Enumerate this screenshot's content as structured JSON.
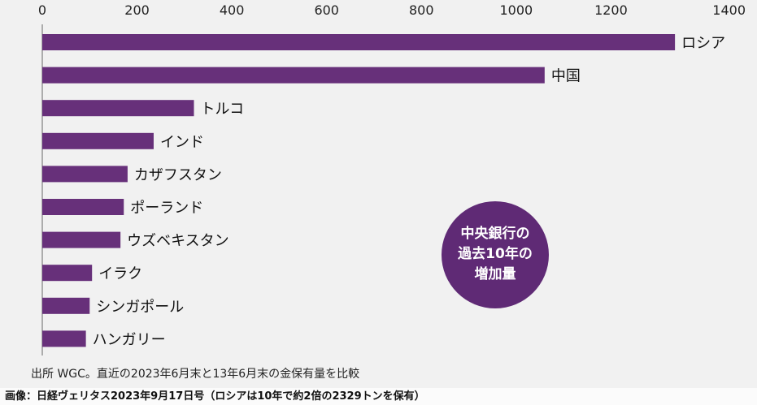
{
  "chart_data": {
    "type": "bar",
    "orientation": "horizontal",
    "categories": [
      "ロシア",
      "中国",
      "トルコ",
      "インド",
      "カザフスタン",
      "ポーランド",
      "ウズベキスタン",
      "イラク",
      "シンガポール",
      "ハンガリー"
    ],
    "values": [
      1335,
      1060,
      320,
      235,
      180,
      172,
      165,
      105,
      100,
      92
    ],
    "ticks": [
      0,
      200,
      400,
      600,
      800,
      1000,
      1200,
      1400
    ],
    "xlim": [
      0,
      1400
    ],
    "bar_color": "#67307a",
    "axis_position": "top",
    "badge": {
      "lines": [
        "中央銀行の",
        "過去10年の",
        "増加量"
      ],
      "color": "#5f2a75"
    }
  },
  "source_note": "出所 WGC。直近の2023年6月末と13年6月末の金保有量を比較",
  "caption": "画像：日経ヴェリタス2023年9月17日号（ロシアは10年で約2倍の2329トンを保有）"
}
